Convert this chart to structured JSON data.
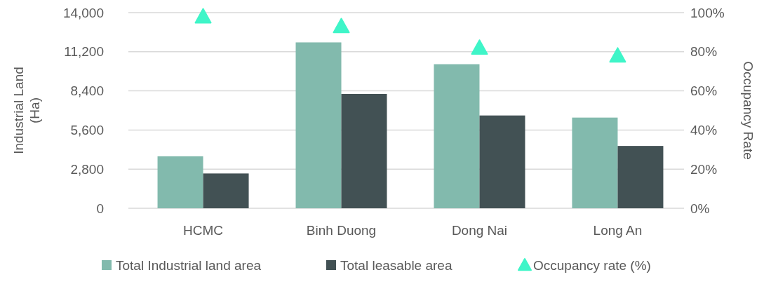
{
  "chart_data": {
    "type": "bar",
    "categories": [
      "HCMC",
      "Binh Duong",
      "Dong Nai",
      "Long An"
    ],
    "ylabel": "Industrial Land (Ha)",
    "y2label": "Occupancy Rate",
    "ylim": [
      0,
      14000
    ],
    "yticks": [
      {
        "value": 0,
        "label": "0"
      },
      {
        "value": 2800,
        "label": "2,800"
      },
      {
        "value": 5600,
        "label": "5,600"
      },
      {
        "value": 8400,
        "label": "8,400"
      },
      {
        "value": 11200,
        "label": "11,200"
      },
      {
        "value": 14000,
        "label": "14,000"
      }
    ],
    "y2lim": [
      0,
      100
    ],
    "y2ticks": [
      {
        "value": 0,
        "label": "0%"
      },
      {
        "value": 20,
        "label": "20%"
      },
      {
        "value": 40,
        "label": "40%"
      },
      {
        "value": 60,
        "label": "60%"
      },
      {
        "value": 80,
        "label": "80%"
      },
      {
        "value": 100,
        "label": "100%"
      }
    ],
    "grid": "y",
    "legend": "bottom",
    "series": [
      {
        "name": "Total Industrial land area",
        "color": "#82baad",
        "values": [
          3720,
          11870,
          10310,
          6490
        ]
      },
      {
        "name": "Total leasable area",
        "color": "#425154",
        "values": [
          2490,
          8180,
          6640,
          4460
        ]
      },
      {
        "name": "Occupancy rate (%)",
        "type": "scatter",
        "axis": "y2",
        "marker": "triangle",
        "color": "#3ff5c8",
        "values": [
          98,
          93,
          82,
          78
        ]
      }
    ]
  }
}
